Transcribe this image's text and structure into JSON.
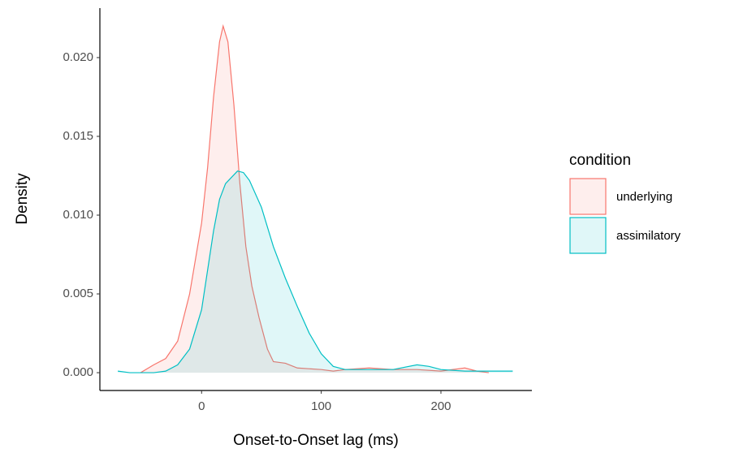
{
  "chart_data": {
    "type": "density",
    "x_label": "Onset-to-Onset lag (ms)",
    "y_label": "Density",
    "legend_title": "condition",
    "legend_position": "right",
    "xlim": [
      -85,
      276
    ],
    "ylim": [
      -0.00113,
      0.02314
    ],
    "xticks": [
      0,
      100,
      200
    ],
    "yticks": [
      {
        "value": 0,
        "label": "0.000"
      },
      {
        "value": 0.005,
        "label": "0.005"
      },
      {
        "value": 0.01,
        "label": "0.010"
      },
      {
        "value": 0.015,
        "label": "0.015"
      },
      {
        "value": 0.02,
        "label": "0.020"
      }
    ],
    "series": [
      {
        "name": "underlying",
        "color": "#F8766D",
        "x": [
          -51,
          -40,
          -30,
          -20,
          -10,
          0,
          5,
          10,
          15,
          18,
          22,
          27,
          32,
          37,
          42,
          48,
          55,
          60,
          70,
          80,
          100,
          110,
          120,
          140,
          160,
          180,
          200,
          220,
          230,
          240
        ],
        "values": [
          0,
          0.0005,
          0.0009,
          0.002,
          0.005,
          0.0095,
          0.013,
          0.0175,
          0.021,
          0.022,
          0.021,
          0.017,
          0.012,
          0.008,
          0.0055,
          0.0035,
          0.0015,
          0.0007,
          0.0006,
          0.0003,
          0.0002,
          0.0001,
          0.0002,
          0.0003,
          0.0002,
          0.0002,
          0.0001,
          0.0003,
          0.0001,
          0
        ]
      },
      {
        "name": "assimilatory",
        "color": "#00BFC4",
        "x": [
          -70,
          -60,
          -40,
          -30,
          -20,
          -10,
          0,
          5,
          10,
          15,
          20,
          30,
          35,
          40,
          50,
          60,
          70,
          80,
          90,
          100,
          110,
          120,
          140,
          160,
          180,
          190,
          200,
          220,
          240,
          260
        ],
        "values": [
          0.0001,
          0,
          0,
          0.0001,
          0.0005,
          0.0015,
          0.004,
          0.0065,
          0.009,
          0.011,
          0.012,
          0.0128,
          0.0127,
          0.0122,
          0.0105,
          0.008,
          0.006,
          0.0042,
          0.0025,
          0.0012,
          0.0004,
          0.0002,
          0.0002,
          0.0002,
          0.0005,
          0.0004,
          0.0002,
          0.0001,
          0.0001,
          0.0001
        ]
      }
    ]
  }
}
